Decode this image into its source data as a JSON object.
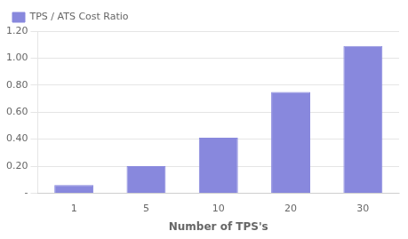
{
  "chart_data": {
    "type": "bar",
    "categories": [
      "1",
      "5",
      "10",
      "20",
      "30"
    ],
    "series": [
      {
        "name": "TPS / ATS Cost Ratio",
        "color": "#8888dd",
        "values": [
          0.06,
          0.2,
          0.41,
          0.75,
          1.09
        ]
      }
    ],
    "xlabel": "Number of TPS's",
    "ylim": [
      0,
      1.2
    ],
    "yticks": [
      {
        "value": 0.0,
        "label": "-"
      },
      {
        "value": 0.2,
        "label": "0.20"
      },
      {
        "value": 0.4,
        "label": "0.40"
      },
      {
        "value": 0.6,
        "label": "0.60"
      },
      {
        "value": 0.8,
        "label": "0.80"
      },
      {
        "value": 1.0,
        "label": "1.00"
      },
      {
        "value": 1.2,
        "label": "1.20"
      }
    ],
    "grid": true,
    "legend": "upper left"
  }
}
